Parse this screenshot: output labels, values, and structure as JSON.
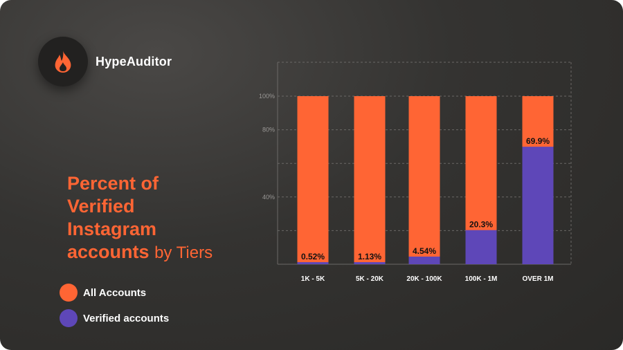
{
  "brand": {
    "name": "HypeAuditor",
    "icon": "flame-icon",
    "icon_color": "#ff6534"
  },
  "title": {
    "bold_lines": [
      "Percent of",
      "Verified",
      "Instagram",
      "accounts"
    ],
    "suffix": "by Tiers"
  },
  "legend": [
    {
      "label": "All Accounts",
      "color": "#ff6534"
    },
    {
      "label": "Verified accounts",
      "color": "#5e47b8"
    }
  ],
  "colors": {
    "all_accounts": "#ff6534",
    "verified": "#5e47b8",
    "accent": "#ff6534",
    "background": "#2f2e2c"
  },
  "chart_data": {
    "type": "bar",
    "stacked": true,
    "categories": [
      "1K - 5K",
      "5K - 20K",
      "20K - 100K",
      "100K - 1M",
      "OVER 1M"
    ],
    "series": [
      {
        "name": "All Accounts",
        "values": [
          100,
          100,
          100,
          100,
          100
        ]
      },
      {
        "name": "Verified accounts",
        "values": [
          0.52,
          1.13,
          4.54,
          20.3,
          69.9
        ]
      }
    ],
    "data_labels": [
      "0.52%",
      "1.13%",
      "4.54%",
      "20.3%",
      "69.9%"
    ],
    "y_ticks": [
      "100%",
      "80%",
      "40%"
    ],
    "y_tick_values": [
      100,
      80,
      40
    ],
    "grid": true,
    "grid_style": "dashed"
  }
}
